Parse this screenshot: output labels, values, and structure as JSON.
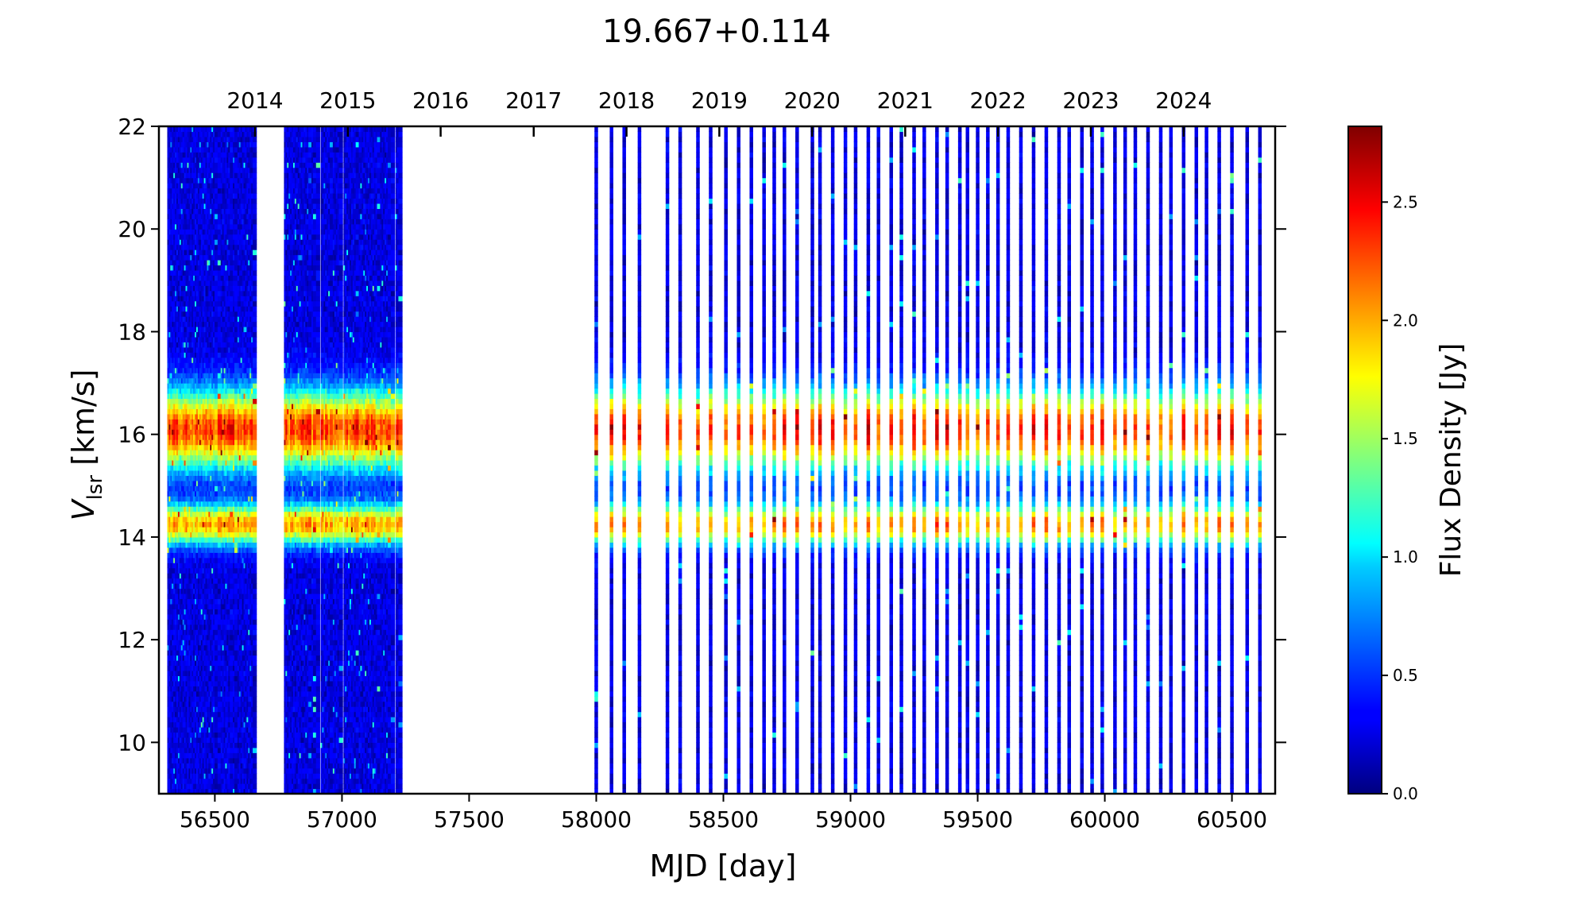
{
  "chart_data": {
    "type": "heatmap",
    "title": "19.667+0.114",
    "xlabel": "MJD [day]",
    "ylabel_main": "V",
    "ylabel_sub": "lsr",
    "ylabel_unit": "[km/s]",
    "xlim": [
      56280,
      60670
    ],
    "ylim": [
      9,
      22
    ],
    "x_ticks": [
      56500,
      57000,
      57500,
      58000,
      58500,
      59000,
      59500,
      60000,
      60500
    ],
    "x_tick_labels": [
      "56500",
      "57000",
      "57500",
      "58000",
      "58500",
      "59000",
      "59500",
      "60000",
      "60500"
    ],
    "y_ticks": [
      10,
      12,
      14,
      16,
      18,
      20,
      22
    ],
    "y_tick_labels": [
      "10",
      "12",
      "14",
      "16",
      "18",
      "20",
      "22"
    ],
    "top_axis_years": [
      {
        "label": "2014",
        "mjd": 56658
      },
      {
        "label": "2015",
        "mjd": 57023
      },
      {
        "label": "2016",
        "mjd": 57388
      },
      {
        "label": "2017",
        "mjd": 57754
      },
      {
        "label": "2018",
        "mjd": 58119
      },
      {
        "label": "2019",
        "mjd": 58484
      },
      {
        "label": "2020",
        "mjd": 58849
      },
      {
        "label": "2021",
        "mjd": 59215
      },
      {
        "label": "2022",
        "mjd": 59580
      },
      {
        "label": "2023",
        "mjd": 59945
      },
      {
        "label": "2024",
        "mjd": 60310
      }
    ],
    "colorbar": {
      "label": "Flux Density [Jy]",
      "range": [
        0.0,
        2.82
      ],
      "ticks": [
        0.0,
        0.5,
        1.0,
        1.5,
        2.0,
        2.5
      ],
      "tick_labels": [
        "0.0",
        "0.5",
        "1.0",
        "1.5",
        "2.0",
        "2.5"
      ],
      "colormap": "jet"
    },
    "components": [
      {
        "velocity_center": 16.1,
        "typical_peak_flux": 2.0
      },
      {
        "velocity_center": 14.25,
        "typical_peak_flux": 1.7
      }
    ],
    "dense_observation_ranges": [
      [
        56315,
        56660
      ],
      [
        56780,
        57235
      ]
    ],
    "observation_epochs": [
      58000,
      58060,
      58110,
      58170,
      58280,
      58330,
      58400,
      58450,
      58510,
      58560,
      58610,
      58660,
      58700,
      58740,
      58790,
      58850,
      58880,
      58930,
      58980,
      59020,
      59070,
      59110,
      59160,
      59200,
      59250,
      59290,
      59340,
      59380,
      59430,
      59460,
      59500,
      59540,
      59580,
      59620,
      59670,
      59720,
      59770,
      59820,
      59860,
      59910,
      59950,
      59990,
      60040,
      60080,
      60120,
      60170,
      60220,
      60260,
      60310,
      60360,
      60400,
      60450,
      60500,
      60560,
      60610
    ]
  }
}
